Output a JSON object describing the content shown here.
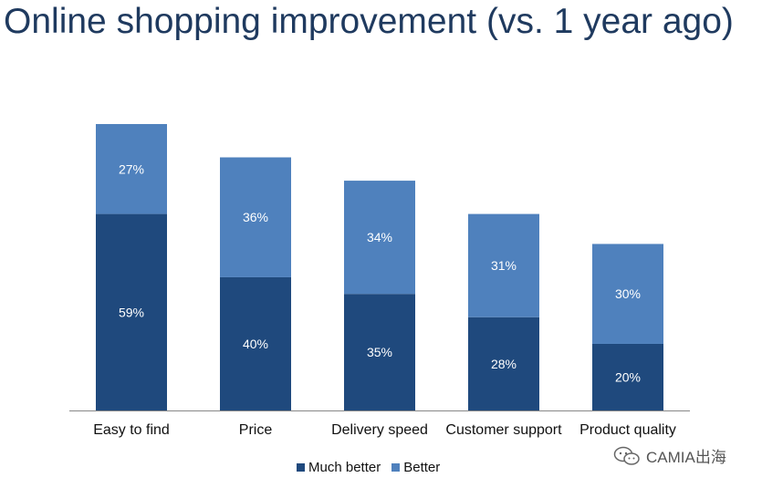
{
  "title": "Online shopping improvement (vs. 1 year ago)",
  "colors": {
    "much_better": "#1f497d",
    "better": "#4f81bd",
    "axis": "#888888",
    "title": "#1f3a5f"
  },
  "chart_data": {
    "type": "bar",
    "stacked": true,
    "categories": [
      "Easy to find",
      "Price",
      "Delivery speed",
      "Customer support",
      "Product quality"
    ],
    "series": [
      {
        "name": "Much better",
        "values": [
          59,
          40,
          35,
          28,
          20
        ],
        "labels": [
          "59%",
          "40%",
          "35%",
          "28%",
          "20%"
        ]
      },
      {
        "name": "Better",
        "values": [
          27,
          36,
          34,
          31,
          30
        ],
        "labels": [
          "27%",
          "36%",
          "34%",
          "31%",
          "30%"
        ]
      }
    ],
    "ylim": [
      0,
      86
    ],
    "grid": false,
    "legend_position": "bottom"
  },
  "watermark": {
    "text": "CAMIA出海",
    "icon": "wechat-icon"
  }
}
